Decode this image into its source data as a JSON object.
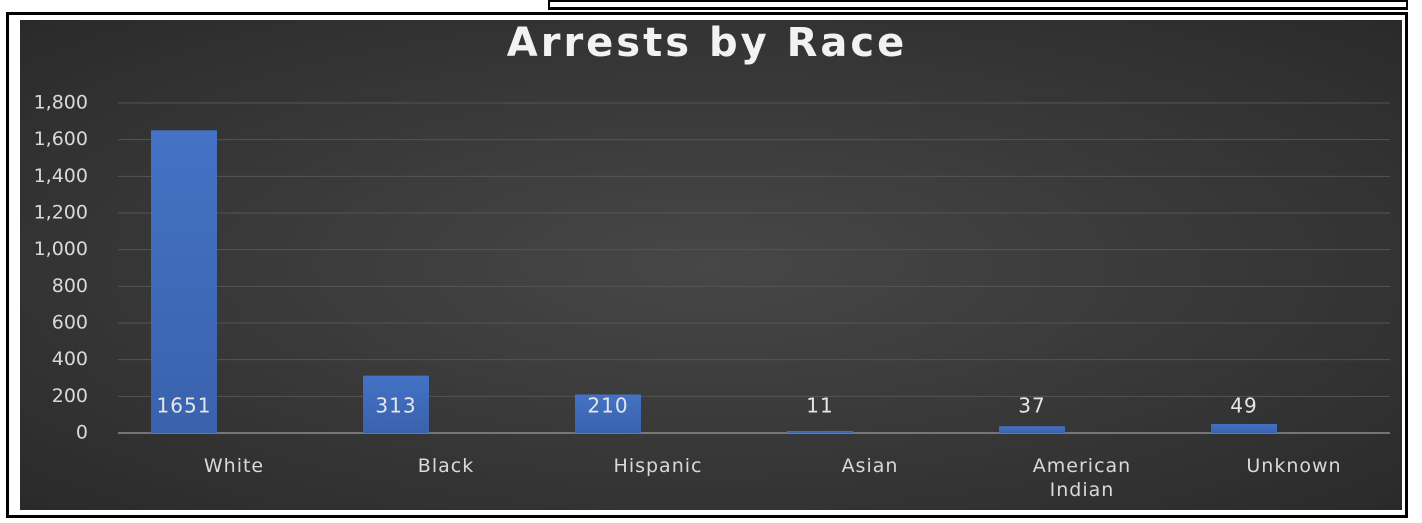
{
  "chart_data": {
    "type": "bar",
    "title": "Arrests by Race",
    "categories": [
      "White",
      "Black",
      "Hispanic",
      "Asian",
      "American Indian",
      "Unknown"
    ],
    "values": [
      1651,
      313,
      210,
      11,
      37,
      49
    ],
    "color": "#4472c4",
    "ylim": [
      0,
      1800
    ],
    "yticks": [
      0,
      200,
      400,
      600,
      800,
      {
        "value": 1000,
        "label": "1,000"
      },
      {
        "value": 1200,
        "label": "1,200"
      },
      {
        "value": 1400,
        "label": "1,400"
      },
      {
        "value": 1600,
        "label": "1,600"
      },
      {
        "value": 1800,
        "label": "1,800"
      }
    ],
    "grid": true
  }
}
